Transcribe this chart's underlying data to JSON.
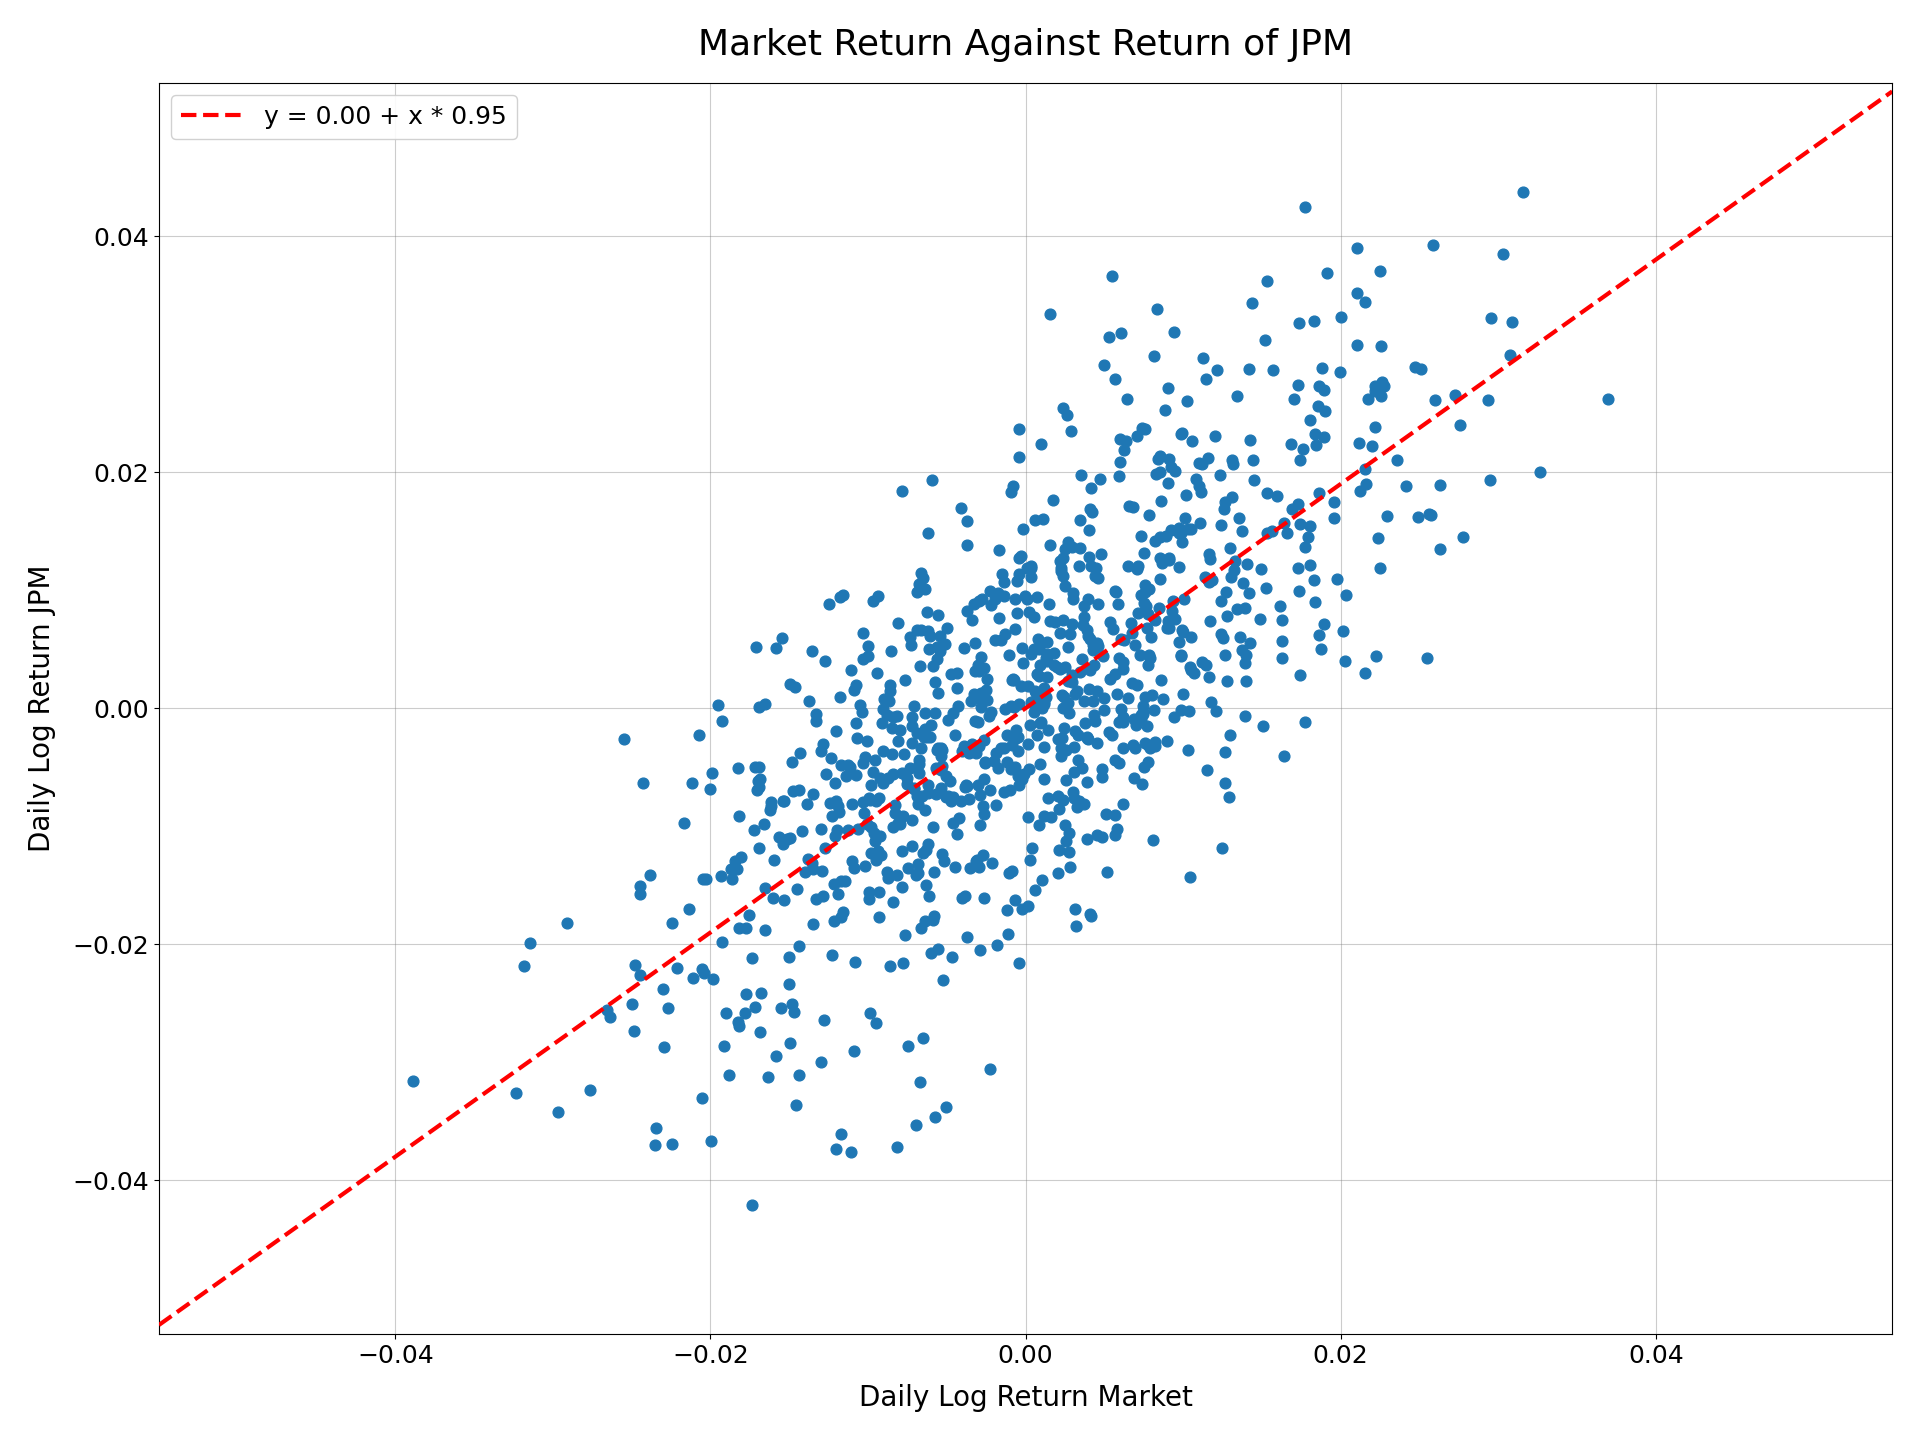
{
  "title": "Market Return Against Return of JPM",
  "xlabel": "Daily Log Return Market",
  "ylabel": "Daily Log Return JPM",
  "legend_label": "y = 0.00 + x * 0.95",
  "intercept": 0.0,
  "slope": 0.95,
  "scatter_color": "#1f77b4",
  "line_color": "red",
  "line_style": "--",
  "xlim": [
    -0.055,
    0.055
  ],
  "ylim": [
    -0.053,
    0.053
  ],
  "xticks": [
    -0.04,
    -0.02,
    0.0,
    0.02,
    0.04
  ],
  "yticks": [
    -0.04,
    -0.02,
    0.0,
    0.02,
    0.04
  ],
  "marker_size": 60,
  "alpha": 1.0,
  "seed": 42,
  "n_points": 1000,
  "market_std": 0.012,
  "noise_std": 0.01,
  "background_color": "white",
  "grid_color": "gray",
  "title_fontsize": 26,
  "label_fontsize": 20,
  "tick_fontsize": 18,
  "legend_fontsize": 18
}
